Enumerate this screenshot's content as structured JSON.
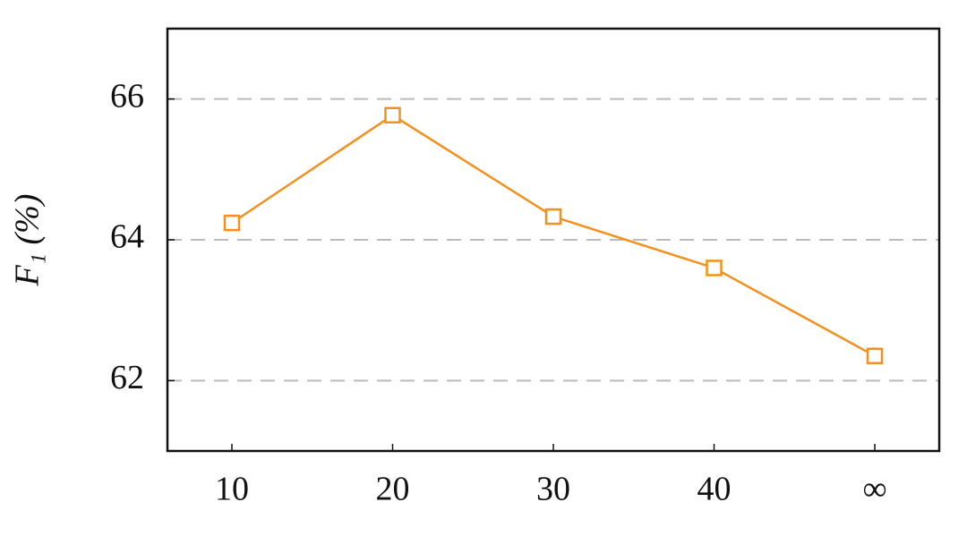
{
  "chart_data": {
    "type": "line",
    "y_label": "F₁ (%)",
    "categories": [
      "10",
      "20",
      "30",
      "40",
      "∞"
    ],
    "series": [
      {
        "name": "F1",
        "color": "#f5901e",
        "values": [
          64.24,
          65.77,
          64.33,
          63.6,
          62.35
        ]
      }
    ],
    "ylim": [
      61,
      67
    ],
    "yticks": [
      62,
      64,
      66
    ],
    "grid": true,
    "marker": "square"
  }
}
